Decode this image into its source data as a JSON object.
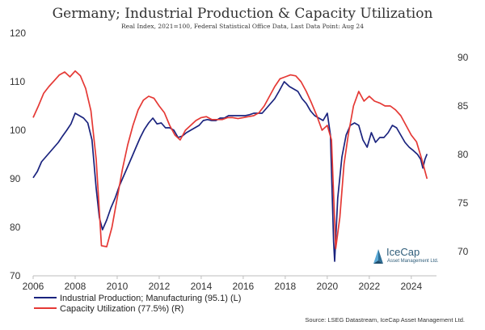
{
  "chart_data": {
    "type": "line",
    "title": "Germany; Industrial Production & Capacity Utilization",
    "subtitle": "Real Index, 2021=100, Federal Statistical Office Data, Last Data Point: Aug 24",
    "source": "Source: LSEG Datastream, IceCap Asset Management Ltd.",
    "x_ticks": [
      "2006",
      "2008",
      "2010",
      "2012",
      "2014",
      "2016",
      "2018",
      "2020",
      "2022",
      "2024"
    ],
    "x_range": [
      2006.0,
      2025.2
    ],
    "y_left": {
      "range": [
        70,
        120
      ],
      "ticks": [
        "70",
        "80",
        "90",
        "100",
        "110",
        "120"
      ]
    },
    "y_right": {
      "range": [
        67.5,
        92.5
      ],
      "ticks": [
        "70",
        "75",
        "80",
        "85",
        "90"
      ]
    },
    "grid": false,
    "legend_position": "bottom-left",
    "series": [
      {
        "name": "Industrial Production; Manufacturing (95.1) (L)",
        "axis": "left",
        "color": "#1a237e",
        "points": [
          [
            2006.0,
            90.2
          ],
          [
            2006.2,
            91.5
          ],
          [
            2006.4,
            93.5
          ],
          [
            2006.6,
            94.5
          ],
          [
            2006.8,
            95.5
          ],
          [
            2007.0,
            96.5
          ],
          [
            2007.2,
            97.5
          ],
          [
            2007.4,
            98.8
          ],
          [
            2007.6,
            100.0
          ],
          [
            2007.8,
            101.3
          ],
          [
            2008.0,
            103.5
          ],
          [
            2008.2,
            103.0
          ],
          [
            2008.4,
            102.5
          ],
          [
            2008.6,
            101.5
          ],
          [
            2008.8,
            98.0
          ],
          [
            2009.0,
            88.0
          ],
          [
            2009.15,
            82.0
          ],
          [
            2009.3,
            79.5
          ],
          [
            2009.5,
            81.5
          ],
          [
            2009.7,
            84.0
          ],
          [
            2009.9,
            86.0
          ],
          [
            2010.1,
            88.5
          ],
          [
            2010.3,
            90.5
          ],
          [
            2010.5,
            92.5
          ],
          [
            2010.7,
            94.5
          ],
          [
            2010.9,
            96.5
          ],
          [
            2011.1,
            98.5
          ],
          [
            2011.3,
            100.2
          ],
          [
            2011.5,
            101.5
          ],
          [
            2011.7,
            102.5
          ],
          [
            2011.9,
            101.3
          ],
          [
            2012.1,
            101.5
          ],
          [
            2012.3,
            100.5
          ],
          [
            2012.5,
            100.5
          ],
          [
            2012.7,
            100.0
          ],
          [
            2012.9,
            98.5
          ],
          [
            2013.1,
            98.8
          ],
          [
            2013.3,
            99.5
          ],
          [
            2013.5,
            100.0
          ],
          [
            2013.7,
            100.5
          ],
          [
            2013.9,
            101.0
          ],
          [
            2014.1,
            102.0
          ],
          [
            2014.3,
            102.2
          ],
          [
            2014.5,
            102.0
          ],
          [
            2014.7,
            102.0
          ],
          [
            2014.9,
            102.5
          ],
          [
            2015.1,
            102.5
          ],
          [
            2015.3,
            103.0
          ],
          [
            2015.5,
            103.0
          ],
          [
            2015.7,
            103.0
          ],
          [
            2015.9,
            103.0
          ],
          [
            2016.1,
            103.0
          ],
          [
            2016.3,
            103.2
          ],
          [
            2016.5,
            103.5
          ],
          [
            2016.7,
            103.5
          ],
          [
            2016.9,
            103.5
          ],
          [
            2017.1,
            104.5
          ],
          [
            2017.3,
            105.5
          ],
          [
            2017.5,
            106.5
          ],
          [
            2017.7,
            108.0
          ],
          [
            2017.95,
            110.0
          ],
          [
            2018.2,
            109.0
          ],
          [
            2018.4,
            108.5
          ],
          [
            2018.6,
            108.0
          ],
          [
            2018.8,
            106.5
          ],
          [
            2019.0,
            105.5
          ],
          [
            2019.2,
            104.0
          ],
          [
            2019.4,
            103.0
          ],
          [
            2019.6,
            102.5
          ],
          [
            2019.8,
            102.0
          ],
          [
            2020.0,
            103.5
          ],
          [
            2020.15,
            99.0
          ],
          [
            2020.3,
            77.0
          ],
          [
            2020.35,
            73.0
          ],
          [
            2020.5,
            86.0
          ],
          [
            2020.7,
            94.5
          ],
          [
            2020.9,
            99.0
          ],
          [
            2021.1,
            101.0
          ],
          [
            2021.3,
            101.5
          ],
          [
            2021.5,
            101.0
          ],
          [
            2021.7,
            98.0
          ],
          [
            2021.9,
            96.5
          ],
          [
            2022.1,
            99.5
          ],
          [
            2022.3,
            97.5
          ],
          [
            2022.5,
            98.5
          ],
          [
            2022.7,
            98.5
          ],
          [
            2022.9,
            99.5
          ],
          [
            2023.1,
            101.0
          ],
          [
            2023.3,
            100.5
          ],
          [
            2023.5,
            99.0
          ],
          [
            2023.7,
            97.5
          ],
          [
            2023.9,
            96.5
          ],
          [
            2024.1,
            95.8
          ],
          [
            2024.3,
            95.0
          ],
          [
            2024.45,
            94.0
          ],
          [
            2024.55,
            92.2
          ],
          [
            2024.65,
            94.0
          ],
          [
            2024.75,
            95.1
          ]
        ]
      },
      {
        "name": "Capacity Utilization (77.5%) (R)",
        "axis": "right",
        "color": "#e53935",
        "points": [
          [
            2006.0,
            83.8
          ],
          [
            2006.25,
            85.0
          ],
          [
            2006.5,
            86.3
          ],
          [
            2006.75,
            87.0
          ],
          [
            2007.0,
            87.6
          ],
          [
            2007.25,
            88.2
          ],
          [
            2007.5,
            88.5
          ],
          [
            2007.75,
            88.0
          ],
          [
            2008.0,
            88.6
          ],
          [
            2008.25,
            88.1
          ],
          [
            2008.5,
            86.8
          ],
          [
            2008.75,
            84.5
          ],
          [
            2009.0,
            79.5
          ],
          [
            2009.25,
            70.6
          ],
          [
            2009.5,
            70.5
          ],
          [
            2009.75,
            72.5
          ],
          [
            2010.0,
            75.5
          ],
          [
            2010.25,
            78.5
          ],
          [
            2010.5,
            81.0
          ],
          [
            2010.75,
            83.0
          ],
          [
            2011.0,
            84.6
          ],
          [
            2011.25,
            85.6
          ],
          [
            2011.5,
            86.0
          ],
          [
            2011.75,
            85.8
          ],
          [
            2012.0,
            85.0
          ],
          [
            2012.25,
            84.3
          ],
          [
            2012.5,
            83.0
          ],
          [
            2012.75,
            82.0
          ],
          [
            2013.0,
            81.5
          ],
          [
            2013.25,
            82.5
          ],
          [
            2013.5,
            83.0
          ],
          [
            2013.75,
            83.5
          ],
          [
            2014.0,
            83.8
          ],
          [
            2014.25,
            83.9
          ],
          [
            2014.5,
            83.6
          ],
          [
            2014.75,
            83.6
          ],
          [
            2015.0,
            83.6
          ],
          [
            2015.25,
            83.8
          ],
          [
            2015.5,
            83.8
          ],
          [
            2015.75,
            83.7
          ],
          [
            2016.0,
            83.8
          ],
          [
            2016.25,
            83.9
          ],
          [
            2016.5,
            84.0
          ],
          [
            2016.75,
            84.3
          ],
          [
            2017.0,
            85.0
          ],
          [
            2017.25,
            86.0
          ],
          [
            2017.5,
            87.0
          ],
          [
            2017.75,
            87.8
          ],
          [
            2018.0,
            88.0
          ],
          [
            2018.25,
            88.2
          ],
          [
            2018.5,
            88.1
          ],
          [
            2018.75,
            87.5
          ],
          [
            2019.0,
            86.5
          ],
          [
            2019.25,
            85.3
          ],
          [
            2019.5,
            84.0
          ],
          [
            2019.75,
            82.5
          ],
          [
            2020.0,
            83.0
          ],
          [
            2020.2,
            81.5
          ],
          [
            2020.4,
            70.3
          ],
          [
            2020.6,
            73.5
          ],
          [
            2020.8,
            79.0
          ],
          [
            2021.0,
            82.0
          ],
          [
            2021.25,
            85.0
          ],
          [
            2021.5,
            86.5
          ],
          [
            2021.75,
            85.5
          ],
          [
            2022.0,
            86.0
          ],
          [
            2022.25,
            85.5
          ],
          [
            2022.5,
            85.3
          ],
          [
            2022.75,
            85.0
          ],
          [
            2023.0,
            85.0
          ],
          [
            2023.25,
            84.6
          ],
          [
            2023.5,
            84.0
          ],
          [
            2023.75,
            83.0
          ],
          [
            2024.0,
            82.0
          ],
          [
            2024.25,
            81.3
          ],
          [
            2024.5,
            79.5
          ],
          [
            2024.75,
            77.5
          ]
        ]
      }
    ]
  },
  "logo": {
    "name": "IceCap",
    "tagline": "Asset Management Ltd."
  }
}
